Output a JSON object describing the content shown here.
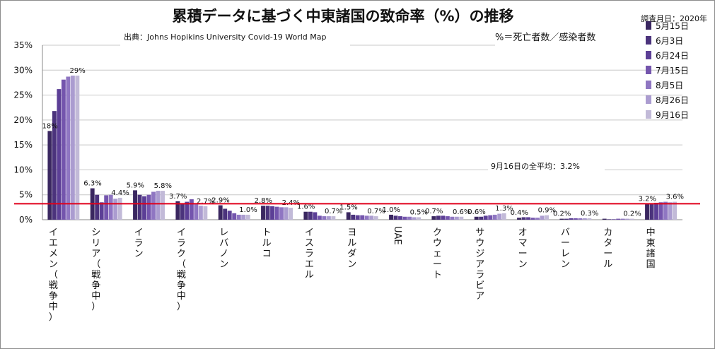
{
  "chart_data": {
    "type": "bar",
    "title": "累積データに基づく中東諸国の致命率（%）の推移",
    "survey_date": "調査月日：2020年",
    "source": "出典：Johns Hopikins University   Covid-19 World Map",
    "formula": "%＝死亡者数／感染者数",
    "average_label": "9月16日の全平均：3.2%",
    "average_value": 3.2,
    "ylim": [
      0,
      35
    ],
    "yticks": [
      {
        "v": 0,
        "label": "0%"
      },
      {
        "v": 5,
        "label": "5%"
      },
      {
        "v": 10,
        "label": "10%"
      },
      {
        "v": 15,
        "label": "15%"
      },
      {
        "v": 20,
        "label": "20%"
      },
      {
        "v": 25,
        "label": "25%"
      },
      {
        "v": 30,
        "label": "30%"
      },
      {
        "v": 35,
        "label": "35%"
      }
    ],
    "categories": [
      "イエメン（戦争中）",
      "シリア（戦争中）",
      "イラン",
      "イラク（戦争中）",
      "レバノン",
      "トルコ",
      "イスラエル",
      "ヨルダン",
      "UAE",
      "クウェート",
      "サウジアラビア",
      "オマーン",
      "バーレン",
      "カタール",
      "中東諸国"
    ],
    "series": [
      {
        "name": "5月15日",
        "color": "#3a2760",
        "values": [
          17.8,
          6.3,
          5.9,
          3.7,
          2.9,
          2.8,
          1.6,
          1.5,
          1.0,
          0.7,
          0.6,
          0.4,
          0.2,
          0.2,
          3.2
        ]
      },
      {
        "name": "6月3日",
        "color": "#4b337c",
        "values": [
          21.8,
          5.0,
          5.0,
          3.3,
          2.2,
          2.8,
          1.6,
          1.0,
          0.8,
          0.8,
          0.6,
          0.5,
          0.2,
          0.1,
          3.3
        ]
      },
      {
        "name": "6月24日",
        "color": "#5c3f96",
        "values": [
          26.2,
          3.5,
          4.7,
          3.6,
          1.8,
          2.7,
          1.5,
          0.9,
          0.7,
          0.8,
          0.8,
          0.5,
          0.3,
          0.1,
          3.4
        ]
      },
      {
        "name": "7月15日",
        "color": "#7455ad",
        "values": [
          28.1,
          4.9,
          5.0,
          4.1,
          1.3,
          2.6,
          0.8,
          0.9,
          0.6,
          0.7,
          0.9,
          0.4,
          0.3,
          0.2,
          3.5
        ]
      },
      {
        "name": "8月5日",
        "color": "#8f76c2",
        "values": [
          28.7,
          5.0,
          5.6,
          3.1,
          1.0,
          2.5,
          0.7,
          0.8,
          0.6,
          0.6,
          1.0,
          0.4,
          0.3,
          0.2,
          3.6
        ]
      },
      {
        "name": "8月26日",
        "color": "#ab9cd0",
        "values": [
          28.9,
          4.2,
          5.8,
          2.8,
          1.0,
          2.5,
          0.7,
          0.8,
          0.5,
          0.6,
          1.2,
          0.8,
          0.3,
          0.2,
          3.5
        ]
      },
      {
        "name": "9月16日",
        "color": "#c2bad8",
        "values": [
          28.9,
          4.4,
          5.8,
          2.7,
          1.0,
          2.4,
          0.7,
          0.7,
          0.5,
          0.6,
          1.3,
          0.9,
          0.3,
          0.2,
          3.6
        ]
      }
    ],
    "data_labels": [
      {
        "cat": 0,
        "series": 0,
        "text": "18%"
      },
      {
        "cat": 0,
        "series": 6,
        "text": "29%"
      },
      {
        "cat": 1,
        "series": 0,
        "text": "6.3%"
      },
      {
        "cat": 1,
        "series": 6,
        "text": "4.4%"
      },
      {
        "cat": 2,
        "series": 0,
        "text": "5.9%"
      },
      {
        "cat": 2,
        "series": 6,
        "text": "5.8%"
      },
      {
        "cat": 3,
        "series": 0,
        "text": "3.7%"
      },
      {
        "cat": 3,
        "series": 6,
        "text": "2.7%"
      },
      {
        "cat": 4,
        "series": 0,
        "text": "2.9%"
      },
      {
        "cat": 4,
        "series": 6,
        "text": "1.0%"
      },
      {
        "cat": 5,
        "series": 0,
        "text": "2.8%"
      },
      {
        "cat": 5,
        "series": 6,
        "text": "2.4%"
      },
      {
        "cat": 6,
        "series": 0,
        "text": "1.6%"
      },
      {
        "cat": 6,
        "series": 6,
        "text": "0.7%"
      },
      {
        "cat": 7,
        "series": 0,
        "text": "1.5%"
      },
      {
        "cat": 7,
        "series": 6,
        "text": "0.7%"
      },
      {
        "cat": 8,
        "series": 0,
        "text": "1.0%"
      },
      {
        "cat": 8,
        "series": 6,
        "text": "0.5%"
      },
      {
        "cat": 9,
        "series": 0,
        "text": "0.7%"
      },
      {
        "cat": 9,
        "series": 6,
        "text": "0.6%"
      },
      {
        "cat": 10,
        "series": 0,
        "text": "0.6%"
      },
      {
        "cat": 10,
        "series": 6,
        "text": "1.3%"
      },
      {
        "cat": 11,
        "series": 0,
        "text": "0.4%"
      },
      {
        "cat": 11,
        "series": 6,
        "text": "0.9%"
      },
      {
        "cat": 12,
        "series": 0,
        "text": "0.2%"
      },
      {
        "cat": 12,
        "series": 6,
        "text": "0.3%"
      },
      {
        "cat": 13,
        "series": 6,
        "text": "0.2%"
      },
      {
        "cat": 14,
        "series": 0,
        "text": "3.2%"
      },
      {
        "cat": 14,
        "series": 6,
        "text": "3.6%"
      }
    ],
    "legend_position": "right",
    "grid": true,
    "average_line_color": "#e0001b"
  }
}
